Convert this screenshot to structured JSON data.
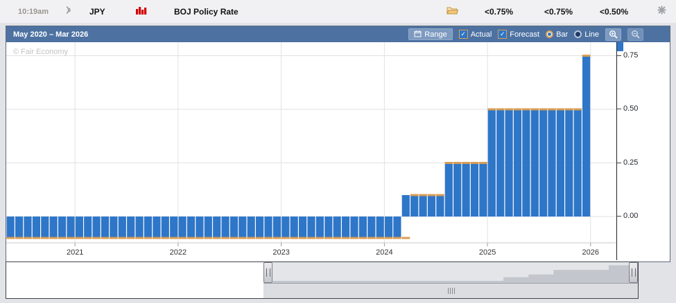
{
  "event_row": {
    "time": "10:19am",
    "currency": "JPY",
    "title": "BOJ Policy Rate",
    "actual": "<0.75%",
    "forecast": "<0.75%",
    "previous": "<0.50%"
  },
  "chart_header": {
    "range_label": "May 2020 – Mar 2026",
    "range_button": "Range",
    "actual_label": "Actual",
    "actual_checked": true,
    "forecast_label": "Forecast",
    "forecast_checked": true,
    "bar_label": "Bar",
    "bar_selected": true,
    "line_label": "Line",
    "line_selected": false
  },
  "watermark": "© Fair Economy",
  "icons": {
    "check": "✓"
  },
  "colors": {
    "actual_bar": "#2e76c8",
    "forecast_marker": "#d89e56",
    "header_bg": "#4d72a2",
    "header_button_bg": "#7d9ac0",
    "navigator_fill": "#c3c7cd",
    "impact": "#d40000"
  },
  "chart_data": {
    "type": "bar",
    "title": "BOJ Policy Rate",
    "x_start": "2020-05",
    "x_end": "2026-03",
    "months_total": 71,
    "grid": true,
    "legend": [
      "Actual",
      "Forecast"
    ],
    "y_tick_labels": [
      "0.75",
      "0.50",
      "0.25",
      "0.00"
    ],
    "y_tick_values": [
      0.75,
      0.5,
      0.25,
      0.0
    ],
    "ylim": [
      -0.21,
      0.82
    ],
    "year_ticks": [
      {
        "label": "2021",
        "month_index": 8
      },
      {
        "label": "2022",
        "month_index": 20
      },
      {
        "label": "2023",
        "month_index": 32
      },
      {
        "label": "2024",
        "month_index": 44
      },
      {
        "label": "2025",
        "month_index": 56
      },
      {
        "label": "2026",
        "month_index": 68
      }
    ],
    "series": [
      {
        "name": "Actual",
        "color": "#2e76c8",
        "runs": [
          {
            "from": "2020-05",
            "to": "2024-02",
            "value": -0.1
          },
          {
            "from": "2024-03",
            "to": "2024-07",
            "value": 0.1
          },
          {
            "from": "2024-08",
            "to": "2024-12",
            "value": 0.25
          },
          {
            "from": "2025-01",
            "to": "2025-11",
            "value": 0.5
          },
          {
            "from": "2025-12",
            "to": "2025-12",
            "value": 0.75
          }
        ]
      },
      {
        "name": "Forecast",
        "color": "#d89e56",
        "runs": [
          {
            "from": "2020-05",
            "to": "2024-03",
            "value": -0.1
          },
          {
            "from": "2024-04",
            "to": "2024-07",
            "value": 0.1
          },
          {
            "from": "2024-08",
            "to": "2024-12",
            "value": 0.25
          },
          {
            "from": "2025-01",
            "to": "2025-11",
            "value": 0.5
          },
          {
            "from": "2025-12",
            "to": "2025-12",
            "value": 0.75
          }
        ]
      }
    ]
  }
}
